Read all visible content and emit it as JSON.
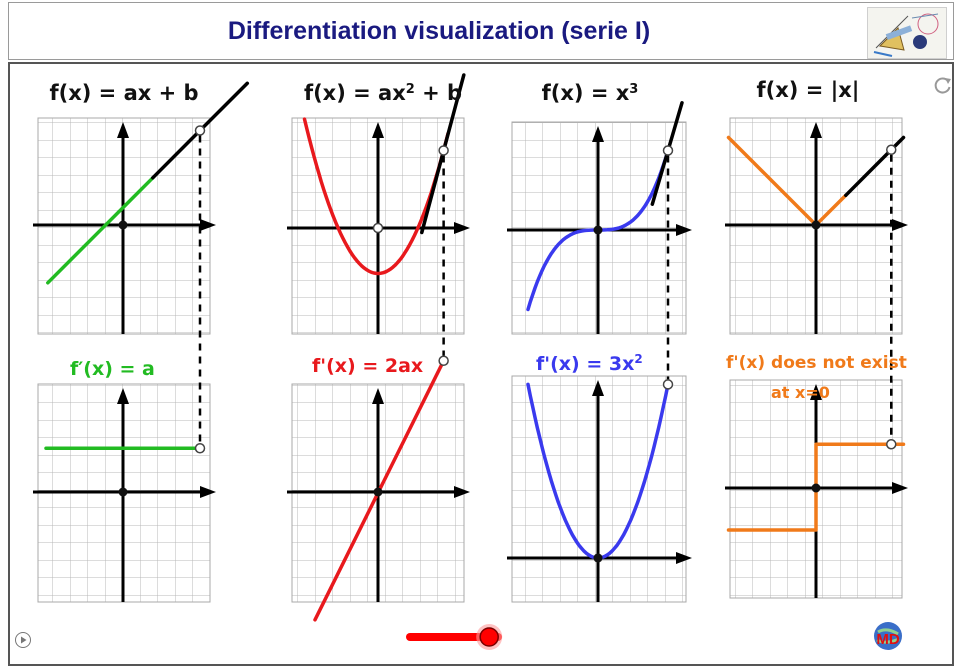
{
  "header": {
    "title": "Differentiation visualization (serie I)"
  },
  "panels": [
    {
      "f_prefix": "f(x) = ax + b",
      "fp_prefix": "f′(x)",
      "fp_suffix": "= a",
      "color": "#22bb22"
    },
    {
      "f_prefix": "f(x) = ax",
      "f_sup": "2",
      "f_suffix": " + b",
      "fp_prefix": "f'(x)",
      "fp_suffix": "= 2ax",
      "color": "#e8191d"
    },
    {
      "f_prefix": "f(x) = x",
      "f_sup": "3",
      "fp_prefix": "f'(x)",
      "fp_suffix": "= 3x",
      "fp_sup": "2",
      "color": "#3a3aee"
    },
    {
      "f_prefix": "f(x) = |x|",
      "fp_prefix": "f'(x)",
      "fp_suffix": "does not exist",
      "fp_line2": "at x=0",
      "color": "#f07a1a"
    }
  ],
  "slider": {
    "value": 0.9,
    "color": "#ff0000"
  },
  "icons": {
    "play": "play-icon",
    "refresh": "refresh-icon",
    "logo": "geometry-tools-logo",
    "brand": "md-globe-logo"
  }
}
